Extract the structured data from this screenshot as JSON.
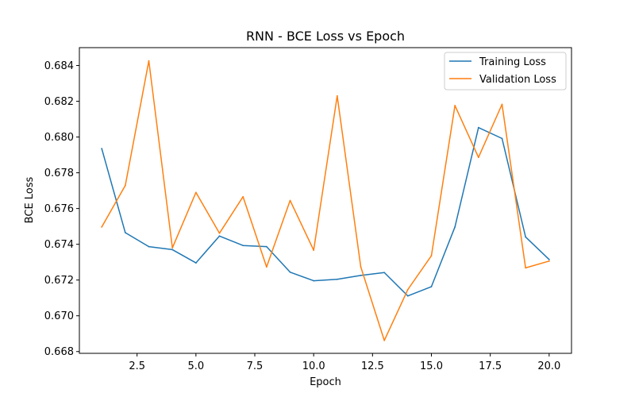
{
  "chart_data": {
    "type": "line",
    "title": "RNN - BCE Loss vs Epoch",
    "xlabel": "Epoch",
    "ylabel": "BCE Loss",
    "xlim": [
      0.05,
      20.95
    ],
    "ylim": [
      0.6679,
      0.685
    ],
    "xticks": [
      2.5,
      5.0,
      7.5,
      10.0,
      12.5,
      15.0,
      17.5,
      20.0
    ],
    "xtick_labels": [
      "2.5",
      "5.0",
      "7.5",
      "10.0",
      "12.5",
      "15.0",
      "17.5",
      "20.0"
    ],
    "yticks": [
      0.668,
      0.67,
      0.672,
      0.674,
      0.676,
      0.678,
      0.68,
      0.682,
      0.684
    ],
    "ytick_labels": [
      "0.668",
      "0.670",
      "0.672",
      "0.674",
      "0.676",
      "0.678",
      "0.680",
      "0.682",
      "0.684"
    ],
    "grid": false,
    "legend_position": "top-right",
    "x": [
      1,
      2,
      3,
      4,
      5,
      6,
      7,
      8,
      9,
      10,
      11,
      12,
      13,
      14,
      15,
      16,
      17,
      18,
      19,
      20
    ],
    "series": [
      {
        "name": "Training Loss",
        "color": "#1f77b4",
        "values": [
          0.67935,
          0.67465,
          0.67387,
          0.6737,
          0.67296,
          0.67446,
          0.67393,
          0.67387,
          0.67244,
          0.67196,
          0.67204,
          0.67226,
          0.67242,
          0.67111,
          0.67163,
          0.67497,
          0.68053,
          0.67992,
          0.67441,
          0.67315
        ]
      },
      {
        "name": "Validation Loss",
        "color": "#ff7f0e",
        "values": [
          0.67497,
          0.67729,
          0.68426,
          0.6738,
          0.6769,
          0.67462,
          0.67666,
          0.67273,
          0.67645,
          0.67367,
          0.6823,
          0.67274,
          0.66862,
          0.67147,
          0.67336,
          0.68176,
          0.67886,
          0.68183,
          0.67268,
          0.67306
        ]
      }
    ]
  }
}
